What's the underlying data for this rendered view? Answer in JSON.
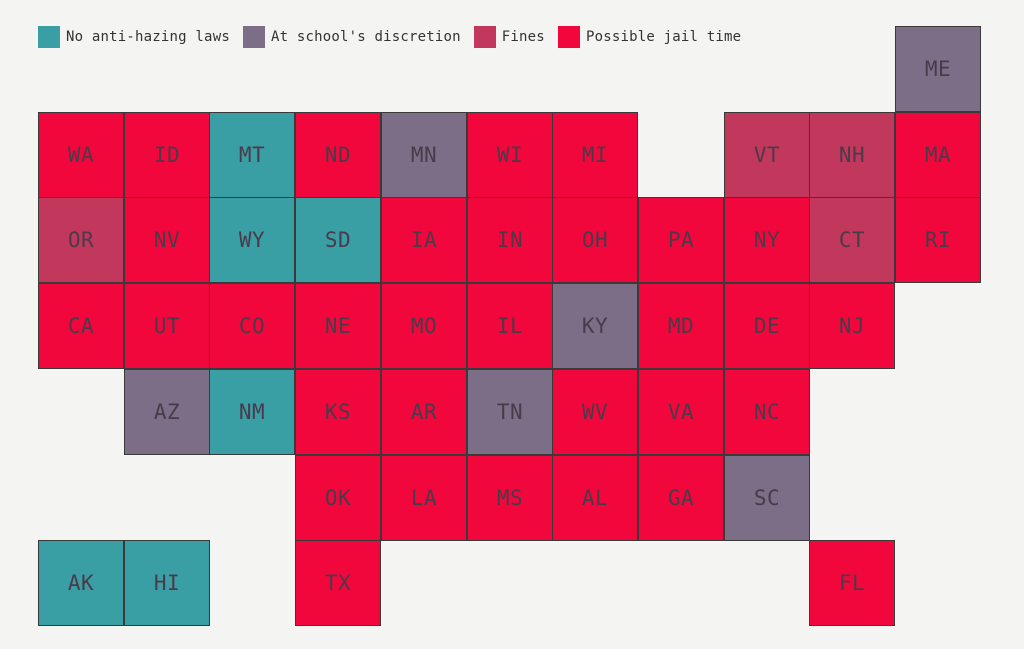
{
  "legend": [
    {
      "key": "none",
      "label": "No anti-hazing laws",
      "color": "#3a9ea5"
    },
    {
      "key": "school",
      "label": "At school's discretion",
      "color": "#7c6e87"
    },
    {
      "key": "fines",
      "label": "Fines",
      "color": "#c2385c"
    },
    {
      "key": "jail",
      "label": "Possible jail time",
      "color": "#f2073c"
    }
  ],
  "states": [
    {
      "abbr": "ME",
      "row": 0,
      "col": 10,
      "status": "school"
    },
    {
      "abbr": "WA",
      "row": 1,
      "col": 0,
      "status": "jail"
    },
    {
      "abbr": "ID",
      "row": 1,
      "col": 1,
      "status": "jail"
    },
    {
      "abbr": "MT",
      "row": 1,
      "col": 2,
      "status": "none"
    },
    {
      "abbr": "ND",
      "row": 1,
      "col": 3,
      "status": "jail"
    },
    {
      "abbr": "MN",
      "row": 1,
      "col": 4,
      "status": "school"
    },
    {
      "abbr": "WI",
      "row": 1,
      "col": 5,
      "status": "jail"
    },
    {
      "abbr": "MI",
      "row": 1,
      "col": 6,
      "status": "jail"
    },
    {
      "abbr": "VT",
      "row": 1,
      "col": 8,
      "status": "fines"
    },
    {
      "abbr": "NH",
      "row": 1,
      "col": 9,
      "status": "fines"
    },
    {
      "abbr": "MA",
      "row": 1,
      "col": 10,
      "status": "jail"
    },
    {
      "abbr": "OR",
      "row": 2,
      "col": 0,
      "status": "fines"
    },
    {
      "abbr": "NV",
      "row": 2,
      "col": 1,
      "status": "jail"
    },
    {
      "abbr": "WY",
      "row": 2,
      "col": 2,
      "status": "none"
    },
    {
      "abbr": "SD",
      "row": 2,
      "col": 3,
      "status": "none"
    },
    {
      "abbr": "IA",
      "row": 2,
      "col": 4,
      "status": "jail"
    },
    {
      "abbr": "IN",
      "row": 2,
      "col": 5,
      "status": "jail"
    },
    {
      "abbr": "OH",
      "row": 2,
      "col": 6,
      "status": "jail"
    },
    {
      "abbr": "PA",
      "row": 2,
      "col": 7,
      "status": "jail"
    },
    {
      "abbr": "NY",
      "row": 2,
      "col": 8,
      "status": "jail"
    },
    {
      "abbr": "CT",
      "row": 2,
      "col": 9,
      "status": "fines"
    },
    {
      "abbr": "RI",
      "row": 2,
      "col": 10,
      "status": "jail"
    },
    {
      "abbr": "CA",
      "row": 3,
      "col": 0,
      "status": "jail"
    },
    {
      "abbr": "UT",
      "row": 3,
      "col": 1,
      "status": "jail"
    },
    {
      "abbr": "CO",
      "row": 3,
      "col": 2,
      "status": "jail"
    },
    {
      "abbr": "NE",
      "row": 3,
      "col": 3,
      "status": "jail"
    },
    {
      "abbr": "MO",
      "row": 3,
      "col": 4,
      "status": "jail"
    },
    {
      "abbr": "IL",
      "row": 3,
      "col": 5,
      "status": "jail"
    },
    {
      "abbr": "KY",
      "row": 3,
      "col": 6,
      "status": "school"
    },
    {
      "abbr": "MD",
      "row": 3,
      "col": 7,
      "status": "jail"
    },
    {
      "abbr": "DE",
      "row": 3,
      "col": 8,
      "status": "jail"
    },
    {
      "abbr": "NJ",
      "row": 3,
      "col": 9,
      "status": "jail"
    },
    {
      "abbr": "AZ",
      "row": 4,
      "col": 1,
      "status": "school"
    },
    {
      "abbr": "NM",
      "row": 4,
      "col": 2,
      "status": "none"
    },
    {
      "abbr": "KS",
      "row": 4,
      "col": 3,
      "status": "jail"
    },
    {
      "abbr": "AR",
      "row": 4,
      "col": 4,
      "status": "jail"
    },
    {
      "abbr": "TN",
      "row": 4,
      "col": 5,
      "status": "school"
    },
    {
      "abbr": "WV",
      "row": 4,
      "col": 6,
      "status": "jail"
    },
    {
      "abbr": "VA",
      "row": 4,
      "col": 7,
      "status": "jail"
    },
    {
      "abbr": "NC",
      "row": 4,
      "col": 8,
      "status": "jail"
    },
    {
      "abbr": "OK",
      "row": 5,
      "col": 3,
      "status": "jail"
    },
    {
      "abbr": "LA",
      "row": 5,
      "col": 4,
      "status": "jail"
    },
    {
      "abbr": "MS",
      "row": 5,
      "col": 5,
      "status": "jail"
    },
    {
      "abbr": "AL",
      "row": 5,
      "col": 6,
      "status": "jail"
    },
    {
      "abbr": "GA",
      "row": 5,
      "col": 7,
      "status": "jail"
    },
    {
      "abbr": "SC",
      "row": 5,
      "col": 8,
      "status": "school"
    },
    {
      "abbr": "AK",
      "row": 6,
      "col": 0,
      "status": "none"
    },
    {
      "abbr": "HI",
      "row": 6,
      "col": 1,
      "status": "none"
    },
    {
      "abbr": "TX",
      "row": 6,
      "col": 3,
      "status": "jail"
    },
    {
      "abbr": "FL",
      "row": 6,
      "col": 9,
      "status": "jail"
    }
  ]
}
